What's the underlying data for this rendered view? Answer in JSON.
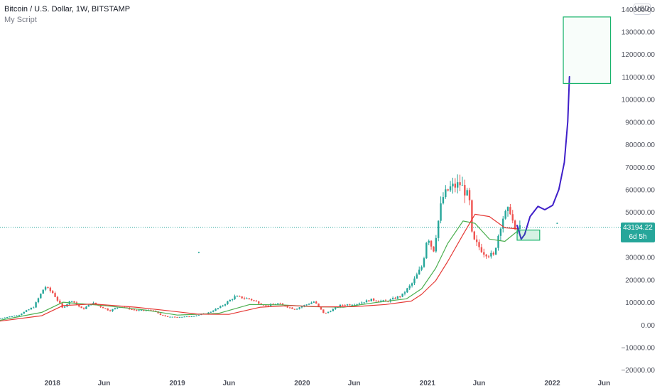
{
  "header": {
    "symbol": "Bitcoin / U.S. Dollar, 1W, BITSTAMP",
    "script": "My Script",
    "currency": "USD"
  },
  "price_tag": {
    "price": "43194.22",
    "countdown": "6d 5h"
  },
  "colors": {
    "up": "#26a69a",
    "down": "#ef5350",
    "ma_fast": "#4caf50",
    "ma_slow": "#e53935",
    "projection": "#3f1fc9",
    "box": "#18b36b",
    "last_price_line": "#26a69a"
  },
  "chart_data": {
    "type": "candlestick",
    "title": "Bitcoin / U.S. Dollar, 1W, BITSTAMP",
    "y_ticks": [
      140000,
      130000,
      120000,
      110000,
      100000,
      90000,
      80000,
      70000,
      60000,
      50000,
      40000,
      30000,
      20000,
      10000,
      0,
      -10000,
      -20000
    ],
    "y_tick_labels": [
      "140000.00",
      "130000.00",
      "120000.00",
      "110000.00",
      "100000.00",
      "90000.00",
      "80000.00",
      "70000.00",
      "60000.00",
      "50000.00",
      "40000.00",
      "30000.00",
      "20000.00",
      "10000.00",
      "0.00",
      "−10000.00",
      "−20000.00"
    ],
    "x_tick_labels": [
      "2018",
      "Jun",
      "2019",
      "Jun",
      "2020",
      "Jun",
      "2021",
      "Jun",
      "2022",
      "Jun"
    ],
    "x_tick_dates": [
      "2018-01-01",
      "2018-06-01",
      "2019-01-01",
      "2019-06-01",
      "2020-01-01",
      "2020-06-01",
      "2021-01-01",
      "2021-06-01",
      "2022-01-01",
      "2022-06-01"
    ],
    "x_range": [
      "2017-08-01",
      "2022-07-20"
    ],
    "y_range": [
      -21500,
      141500
    ],
    "last_price": 43194.22,
    "price_keypoints": [
      [
        "2017-08-01",
        2700
      ],
      [
        "2017-10-01",
        4300
      ],
      [
        "2017-11-15",
        8000
      ],
      [
        "2017-12-17",
        17000
      ],
      [
        "2018-01-10",
        14000
      ],
      [
        "2018-02-06",
        7500
      ],
      [
        "2018-03-05",
        11000
      ],
      [
        "2018-04-06",
        6800
      ],
      [
        "2018-05-05",
        9700
      ],
      [
        "2018-06-25",
        6200
      ],
      [
        "2018-07-25",
        8200
      ],
      [
        "2018-09-10",
        6300
      ],
      [
        "2018-10-30",
        6400
      ],
      [
        "2018-11-20",
        4300
      ],
      [
        "2018-12-15",
        3400
      ],
      [
        "2019-02-10",
        3600
      ],
      [
        "2019-04-05",
        5000
      ],
      [
        "2019-05-15",
        8000
      ],
      [
        "2019-06-26",
        12500
      ],
      [
        "2019-08-06",
        11500
      ],
      [
        "2019-09-25",
        8400
      ],
      [
        "2019-10-28",
        9400
      ],
      [
        "2019-12-17",
        6900
      ],
      [
        "2020-02-12",
        10300
      ],
      [
        "2020-03-13",
        4800
      ],
      [
        "2020-04-30",
        8700
      ],
      [
        "2020-06-15",
        9300
      ],
      [
        "2020-07-28",
        11100
      ],
      [
        "2020-09-10",
        10300
      ],
      [
        "2020-10-25",
        13000
      ],
      [
        "2020-11-25",
        18500
      ],
      [
        "2020-12-25",
        26500
      ],
      [
        "2021-01-08",
        40000
      ],
      [
        "2021-01-25",
        32500
      ],
      [
        "2021-02-20",
        56000
      ],
      [
        "2021-03-13",
        60500
      ],
      [
        "2021-04-14",
        62500
      ],
      [
        "2021-05-10",
        56000
      ],
      [
        "2021-05-19",
        38000
      ],
      [
        "2021-06-22",
        32000
      ],
      [
        "2021-07-20",
        30500
      ],
      [
        "2021-08-14",
        47000
      ],
      [
        "2021-09-06",
        51500
      ],
      [
        "2021-09-21",
        41000
      ],
      [
        "2021-10-01",
        43194
      ]
    ],
    "series": [
      {
        "type": "moving-average",
        "color": "#4caf50",
        "points": [
          [
            "2017-08-01",
            2000
          ],
          [
            "2017-12-01",
            5500
          ],
          [
            "2018-02-01",
            10000
          ],
          [
            "2018-06-01",
            8500
          ],
          [
            "2018-10-01",
            6500
          ],
          [
            "2019-01-01",
            4300
          ],
          [
            "2019-05-01",
            5000
          ],
          [
            "2019-08-01",
            9000
          ],
          [
            "2019-11-01",
            8800
          ],
          [
            "2020-02-01",
            8000
          ],
          [
            "2020-05-01",
            7800
          ],
          [
            "2020-08-01",
            9800
          ],
          [
            "2020-11-01",
            11500
          ],
          [
            "2020-12-15",
            16000
          ],
          [
            "2021-01-25",
            25000
          ],
          [
            "2021-03-01",
            36000
          ],
          [
            "2021-04-15",
            46000
          ],
          [
            "2021-05-20",
            45000
          ],
          [
            "2021-07-01",
            38000
          ],
          [
            "2021-08-15",
            37000
          ],
          [
            "2021-09-25",
            42000
          ]
        ]
      },
      {
        "type": "moving-average",
        "color": "#e53935",
        "points": [
          [
            "2017-08-01",
            1600
          ],
          [
            "2017-12-01",
            4000
          ],
          [
            "2018-02-01",
            8500
          ],
          [
            "2018-05-01",
            9200
          ],
          [
            "2018-09-01",
            7800
          ],
          [
            "2018-12-01",
            6300
          ],
          [
            "2019-03-01",
            4700
          ],
          [
            "2019-06-01",
            4600
          ],
          [
            "2019-09-01",
            7800
          ],
          [
            "2019-12-01",
            8500
          ],
          [
            "2020-03-01",
            7900
          ],
          [
            "2020-06-01",
            8000
          ],
          [
            "2020-09-01",
            9000
          ],
          [
            "2020-11-15",
            10500
          ],
          [
            "2020-12-15",
            13500
          ],
          [
            "2021-01-25",
            19500
          ],
          [
            "2021-03-01",
            28000
          ],
          [
            "2021-04-15",
            40000
          ],
          [
            "2021-05-20",
            49000
          ],
          [
            "2021-07-01",
            48000
          ],
          [
            "2021-08-15",
            43000
          ],
          [
            "2021-09-25",
            42500
          ]
        ]
      },
      {
        "type": "projection-drawing",
        "color": "#3f1fc9",
        "points": [
          [
            "2021-09-20",
            44000
          ],
          [
            "2021-10-02",
            38000
          ],
          [
            "2021-10-12",
            40000
          ],
          [
            "2021-10-28",
            48000
          ],
          [
            "2021-11-20",
            52500
          ],
          [
            "2021-12-10",
            51000
          ],
          [
            "2022-01-02",
            53000
          ],
          [
            "2022-01-20",
            60000
          ],
          [
            "2022-02-05",
            72000
          ],
          [
            "2022-02-15",
            90000
          ],
          [
            "2022-02-20",
            110000
          ]
        ]
      }
    ],
    "boxes": [
      {
        "name": "support-zone",
        "x0": "2021-09-20",
        "x1": "2021-11-25",
        "y0": 37500,
        "y1": 42000
      },
      {
        "name": "target-zone",
        "x0": "2022-02-02",
        "x1": "2022-06-20",
        "y0": 107000,
        "y1": 136500
      }
    ],
    "points": [
      [
        "2019-03-05",
        32000
      ],
      [
        "2022-01-15",
        45000
      ]
    ]
  }
}
